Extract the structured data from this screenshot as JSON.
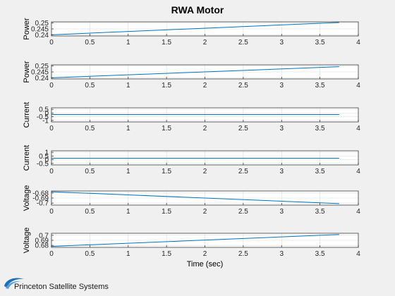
{
  "figure": {
    "title": "RWA Motor",
    "logo_text": "Princeton Satellite Systems"
  },
  "colors": {
    "background": "#f0f0f0",
    "axes_bg": "#ffffff",
    "line": "#0072bd",
    "grid": "#dcdcdc",
    "axis": "#262626"
  },
  "chart_data": [
    {
      "type": "line",
      "ylabel": "Power",
      "xlabel": "",
      "xlim": [
        0,
        4
      ],
      "ylim": [
        0.239,
        0.251
      ],
      "xticks": [
        "0",
        "0.5",
        "1",
        "1.5",
        "2",
        "2.5",
        "3",
        "3.5",
        "4"
      ],
      "yticks": [
        0.24,
        0.245,
        0.25
      ],
      "ytick_labels": [
        "0.24",
        "0.245",
        "0.25"
      ],
      "grid": true,
      "series": [
        {
          "x": [
            0,
            3.75
          ],
          "y": [
            0.24,
            0.2505
          ]
        }
      ]
    },
    {
      "type": "line",
      "ylabel": "Power",
      "xlabel": "",
      "xlim": [
        0,
        4
      ],
      "ylim": [
        0.239,
        0.251
      ],
      "xticks": [
        "0",
        "0.5",
        "1",
        "1.5",
        "2",
        "2.5",
        "3",
        "3.5",
        "4"
      ],
      "yticks": [
        0.24,
        0.245,
        0.25
      ],
      "ytick_labels": [
        "0.24",
        "0.245",
        "0.25"
      ],
      "grid": true,
      "series": [
        {
          "x": [
            0,
            3.75
          ],
          "y": [
            0.24,
            0.2494
          ]
        }
      ]
    },
    {
      "type": "line",
      "ylabel": "Current",
      "xlabel": "",
      "xlim": [
        0,
        4
      ],
      "ylim": [
        -1.2,
        0.7
      ],
      "xticks": [
        "0",
        "0.5",
        "1",
        "1.5",
        "2",
        "2.5",
        "3",
        "3.5",
        "4"
      ],
      "yticks": [
        -1,
        -0.5,
        0,
        0.5
      ],
      "ytick_labels": [
        "-1",
        "-0.5",
        "0",
        "0.5"
      ],
      "grid": true,
      "series": [
        {
          "x": [
            0,
            3.75
          ],
          "y": [
            -0.2,
            -0.2
          ]
        }
      ]
    },
    {
      "type": "line",
      "ylabel": "Current",
      "xlabel": "",
      "xlim": [
        0,
        4
      ],
      "ylim": [
        -0.7,
        1.2
      ],
      "xticks": [
        "0",
        "0.5",
        "1",
        "1.5",
        "2",
        "2.5",
        "3",
        "3.5",
        "4"
      ],
      "yticks": [
        -0.5,
        0,
        0.5,
        1
      ],
      "ytick_labels": [
        "-0.5",
        "0",
        "0.5",
        "1"
      ],
      "grid": true,
      "series": [
        {
          "x": [
            0,
            3.75
          ],
          "y": [
            0.2,
            0.2
          ]
        }
      ]
    },
    {
      "type": "line",
      "ylabel": "Voltage",
      "xlabel": "",
      "xlim": [
        0,
        4
      ],
      "ylim": [
        -0.704,
        -0.676
      ],
      "xticks": [
        "0",
        "0.5",
        "1",
        "1.5",
        "2",
        "2.5",
        "3",
        "3.5",
        "4"
      ],
      "yticks": [
        -0.7,
        -0.69,
        -0.68
      ],
      "ytick_labels": [
        "-0.7",
        "-0.69",
        "-0.68"
      ],
      "grid": true,
      "series": [
        {
          "x": [
            0,
            3.75
          ],
          "y": [
            -0.6775,
            -0.701
          ]
        }
      ]
    },
    {
      "type": "line",
      "ylabel": "Voltage",
      "xlabel": "Time (sec)",
      "xlim": [
        0,
        4
      ],
      "ylim": [
        0.676,
        0.704
      ],
      "xticks": [
        "0",
        "0.5",
        "1",
        "1.5",
        "2",
        "2.5",
        "3",
        "3.5",
        "4"
      ],
      "yticks": [
        0.68,
        0.69,
        0.7
      ],
      "ytick_labels": [
        "0.68",
        "0.69",
        "0.7"
      ],
      "grid": true,
      "series": [
        {
          "x": [
            0,
            3.75
          ],
          "y": [
            0.678,
            0.7015
          ]
        }
      ]
    }
  ]
}
